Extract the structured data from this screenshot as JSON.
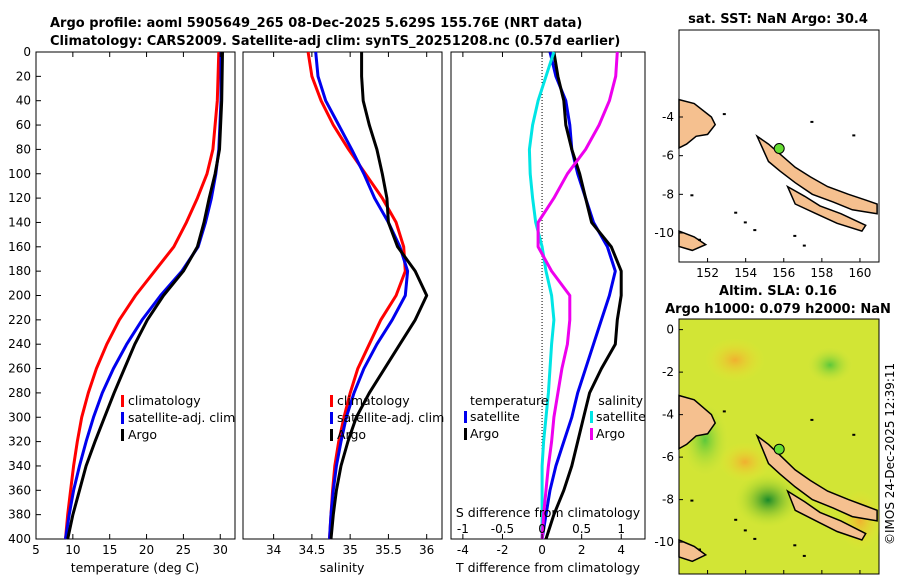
{
  "header": {
    "line1": "Argo profile: aoml 5905649_265 08-Dec-2025 5.629S 155.76E (NRT data)",
    "line2": "Climatology: CARS2009. Satellite-adj clim: synTS_20251208.nc (0.57d earlier)"
  },
  "footer": {
    "stamp": "©IMOS 24-Dec-2025 12:39:11"
  },
  "colors": {
    "red": "#ff0000",
    "blue": "#0000ee",
    "black": "#000000",
    "cyan": "#00e5e5",
    "magenta": "#ee00ee",
    "land": "#f5c08f",
    "float": "#66dd33"
  },
  "chart_data": [
    {
      "type": "line",
      "id": "temperature",
      "xlabel": "temperature (deg C)",
      "xlim": [
        5,
        32
      ],
      "ylim": [
        400,
        0
      ],
      "xticks": [
        5,
        10,
        15,
        20,
        25,
        30
      ],
      "yticks": [
        0,
        20,
        40,
        60,
        80,
        100,
        120,
        140,
        160,
        180,
        200,
        220,
        240,
        260,
        280,
        300,
        320,
        340,
        360,
        380,
        400
      ],
      "legend": [
        "climatology",
        "satellite-adj. clim",
        "Argo"
      ],
      "series": [
        {
          "name": "climatology",
          "color": "red",
          "depth": [
            0,
            40,
            80,
            100,
            120,
            140,
            160,
            180,
            200,
            220,
            240,
            260,
            280,
            300,
            320,
            340,
            360,
            380,
            400
          ],
          "values": [
            29.8,
            29.6,
            29.0,
            28.2,
            26.9,
            25.4,
            23.7,
            21.1,
            18.5,
            16.3,
            14.6,
            13.2,
            12.1,
            11.2,
            10.6,
            10.1,
            9.7,
            9.3,
            9.0
          ]
        },
        {
          "name": "satellite-adj. clim",
          "color": "blue",
          "depth": [
            0,
            40,
            80,
            100,
            120,
            140,
            160,
            180,
            200,
            220,
            240,
            260,
            280,
            300,
            320,
            340,
            360,
            380,
            400
          ],
          "values": [
            30.1,
            30.1,
            29.8,
            29.4,
            28.8,
            28.0,
            27.0,
            24.8,
            21.9,
            19.4,
            17.3,
            15.5,
            14.0,
            12.8,
            11.8,
            10.9,
            10.1,
            9.5,
            9.0
          ]
        },
        {
          "name": "Argo",
          "color": "black",
          "depth": [
            0,
            40,
            80,
            100,
            120,
            140,
            160,
            180,
            200,
            220,
            240,
            260,
            280,
            300,
            320,
            340,
            360,
            380,
            400
          ],
          "values": [
            30.3,
            30.2,
            29.9,
            29.3,
            28.5,
            27.8,
            26.9,
            25.0,
            22.3,
            20.1,
            18.4,
            17.0,
            15.6,
            14.3,
            13.0,
            11.8,
            10.9,
            10.0,
            9.3
          ]
        }
      ]
    },
    {
      "type": "line",
      "id": "salinity",
      "xlabel": "salinity",
      "xlim": [
        33.6,
        36.2
      ],
      "ylim": [
        400,
        0
      ],
      "xticks": [
        34,
        34.5,
        35,
        35.5,
        36
      ],
      "legend": [
        "climatology",
        "satellite-adj. clim",
        "Argo"
      ],
      "series": [
        {
          "name": "climatology",
          "color": "red",
          "depth": [
            0,
            20,
            40,
            60,
            80,
            100,
            120,
            140,
            160,
            180,
            200,
            220,
            240,
            260,
            280,
            300,
            320,
            340,
            360,
            380,
            400
          ],
          "values": [
            34.45,
            34.5,
            34.62,
            34.78,
            34.98,
            35.2,
            35.42,
            35.6,
            35.7,
            35.72,
            35.6,
            35.4,
            35.25,
            35.1,
            35.0,
            34.92,
            34.85,
            34.8,
            34.77,
            34.75,
            34.73
          ]
        },
        {
          "name": "satellite-adj. clim",
          "color": "blue",
          "depth": [
            0,
            20,
            40,
            60,
            80,
            100,
            120,
            140,
            160,
            180,
            200,
            220,
            240,
            260,
            280,
            300,
            320,
            340,
            360,
            380,
            400
          ],
          "values": [
            34.55,
            34.58,
            34.68,
            34.85,
            35.02,
            35.18,
            35.32,
            35.5,
            35.65,
            35.75,
            35.72,
            35.55,
            35.35,
            35.18,
            35.05,
            34.95,
            34.88,
            34.82,
            34.78,
            34.75,
            34.73
          ]
        },
        {
          "name": "Argo",
          "color": "black",
          "depth": [
            0,
            20,
            40,
            60,
            80,
            100,
            120,
            140,
            160,
            180,
            200,
            220,
            240,
            260,
            280,
            300,
            320,
            340,
            360,
            380,
            400
          ],
          "values": [
            35.15,
            35.15,
            35.17,
            35.25,
            35.35,
            35.42,
            35.48,
            35.5,
            35.62,
            35.85,
            36.0,
            35.85,
            35.65,
            35.45,
            35.25,
            35.08,
            34.97,
            34.88,
            34.82,
            34.78,
            34.75
          ]
        }
      ]
    },
    {
      "type": "line",
      "id": "difference",
      "xlabel": "T difference from climatology",
      "top_xlabel": "S difference from climatology",
      "xlim": [
        -4.6,
        5.2
      ],
      "ylim": [
        400,
        0
      ],
      "xticks": [
        -4,
        -2,
        0,
        2,
        4
      ],
      "top_xlim": [
        -1.15,
        1.3
      ],
      "top_xticks": [
        -1,
        -0.5,
        0,
        0.5,
        1
      ],
      "legend_temperature": {
        "title": "temperature",
        "items": [
          "satellite",
          "Argo"
        ]
      },
      "legend_salinity": {
        "title": "salinity",
        "items": [
          "satellite",
          "Argo"
        ]
      },
      "series": [
        {
          "name": "temperature satellite",
          "color": "blue",
          "axis": "T",
          "depth": [
            0,
            20,
            40,
            60,
            80,
            100,
            120,
            140,
            160,
            180,
            200,
            220,
            240,
            260,
            280,
            300,
            320,
            340,
            360,
            380,
            400
          ],
          "values": [
            0.4,
            0.7,
            1.2,
            1.4,
            1.5,
            1.8,
            2.2,
            2.6,
            3.3,
            3.7,
            3.4,
            3.0,
            2.6,
            2.2,
            1.8,
            1.5,
            1.1,
            0.7,
            0.4,
            0.2,
            0.0
          ]
        },
        {
          "name": "temperature Argo",
          "color": "black",
          "axis": "T",
          "depth": [
            0,
            20,
            40,
            60,
            80,
            100,
            120,
            140,
            160,
            180,
            200,
            220,
            240,
            260,
            280,
            300,
            320,
            340,
            360,
            380,
            400
          ],
          "values": [
            0.6,
            0.8,
            1.1,
            1.2,
            1.5,
            1.9,
            2.2,
            2.5,
            3.5,
            4.0,
            4.0,
            3.8,
            3.7,
            3.0,
            2.4,
            2.1,
            1.8,
            1.5,
            1.1,
            0.6,
            0.2
          ]
        },
        {
          "name": "salinity satellite",
          "color": "cyan",
          "axis": "S",
          "depth": [
            0,
            20,
            40,
            60,
            80,
            100,
            120,
            140,
            160,
            180,
            200,
            220,
            240,
            260,
            280,
            300,
            320,
            340,
            360,
            380,
            400
          ],
          "values": [
            0.15,
            0.05,
            -0.05,
            -0.12,
            -0.16,
            -0.15,
            -0.12,
            -0.08,
            0.0,
            0.05,
            0.12,
            0.15,
            0.12,
            0.1,
            0.08,
            0.05,
            0.02,
            0.0,
            0.0,
            0.0,
            0.0
          ]
        },
        {
          "name": "salinity Argo",
          "color": "magenta",
          "axis": "S",
          "depth": [
            0,
            20,
            40,
            60,
            80,
            100,
            120,
            140,
            160,
            180,
            200,
            220,
            240,
            260,
            280,
            300,
            320,
            340,
            360,
            380,
            400
          ],
          "values": [
            0.95,
            0.93,
            0.85,
            0.72,
            0.55,
            0.32,
            0.15,
            -0.05,
            -0.05,
            0.12,
            0.35,
            0.35,
            0.32,
            0.25,
            0.2,
            0.15,
            0.12,
            0.08,
            0.05,
            0.02,
            0.0
          ]
        }
      ]
    },
    {
      "type": "scatter",
      "id": "sst-map",
      "title": "sat. SST: NaN Argo: 30.4",
      "xlim": [
        150.5,
        161
      ],
      "ylim": [
        -11.5,
        0.5
      ],
      "xticks": [
        152,
        154,
        156,
        158,
        160
      ],
      "yticks": [
        -4,
        -6,
        -8,
        -10
      ],
      "float_position": {
        "lon": 155.76,
        "lat": -5.629
      }
    },
    {
      "type": "heatmap",
      "id": "sla-map",
      "title": "Altim. SLA: 0.16",
      "subtitle": "Argo h1000: 0.079 h2000: NaN",
      "xlim": [
        150.5,
        161
      ],
      "ylim": [
        -11.5,
        0.5
      ],
      "xticks": [
        152,
        154,
        156,
        158,
        160
      ],
      "yticks": [
        0,
        -2,
        -4,
        -6,
        -8,
        -10
      ],
      "float_position": {
        "lon": 155.76,
        "lat": -5.629
      }
    }
  ]
}
